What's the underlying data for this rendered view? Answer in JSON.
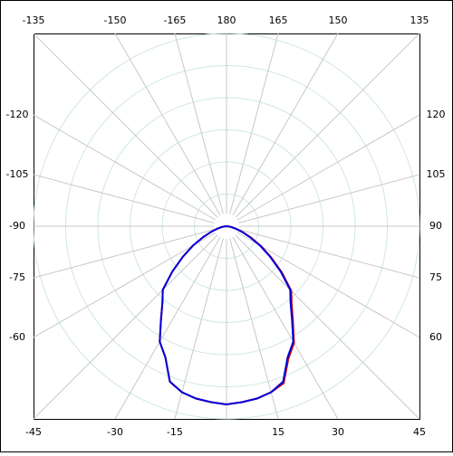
{
  "chart_data": {
    "type": "polar",
    "angles": [
      -90,
      -85,
      -80,
      -75,
      -70,
      -65,
      -60,
      -55,
      -50,
      -45,
      -40,
      -35,
      -30,
      -25,
      -20,
      -15,
      -10,
      -5,
      0,
      5,
      10,
      15,
      20,
      25,
      30,
      35,
      40,
      45,
      50,
      55,
      60,
      65,
      70,
      75,
      80,
      85,
      90
    ],
    "series": [
      {
        "color": "#cc0000",
        "values": [
          0,
          1,
          3,
          6,
          10,
          16,
          24,
          33,
          44,
          56,
          62,
          71,
          83,
          90,
          103,
          107,
          109,
          110,
          111,
          110,
          109,
          107,
          104,
          91,
          84,
          72,
          63,
          57,
          45,
          34,
          25,
          17,
          11,
          6,
          3,
          1,
          0
        ]
      },
      {
        "color": "#0000dd",
        "values": [
          0,
          1,
          3,
          6,
          10,
          16,
          24,
          33,
          44,
          56,
          62,
          71,
          83,
          90,
          103,
          107,
          109,
          110,
          111,
          110,
          109,
          107,
          103,
          90,
          83,
          71,
          62,
          56,
          44,
          33,
          24,
          16,
          10,
          6,
          3,
          1,
          0
        ]
      }
    ],
    "rlim": [
      0,
      120
    ],
    "rticks": [
      20,
      40,
      60,
      80,
      100,
      120
    ],
    "angle_ticks": [
      -135,
      -150,
      -165,
      180,
      165,
      150,
      135,
      -120,
      -105,
      -90,
      -75,
      -60,
      120,
      105,
      90,
      75,
      60,
      -45,
      -30,
      -15,
      15,
      30,
      45
    ]
  }
}
